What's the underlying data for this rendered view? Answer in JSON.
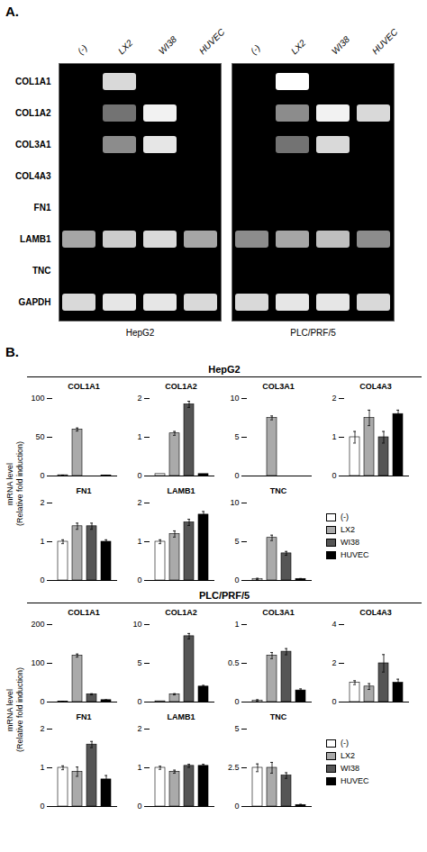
{
  "chart_data": [
    {
      "type": "heatmap",
      "title": "HepG2",
      "annotations": [
        "A."
      ],
      "x": [
        "(-)",
        "LX2",
        "WI38",
        "HUVEC"
      ],
      "y": [
        "COL1A1",
        "COL1A2",
        "COL3A1",
        "COL4A3",
        "FN1",
        "LAMB1",
        "TNC",
        "GAPDH"
      ],
      "cells": [
        [
          0,
          0.85,
          0,
          0
        ],
        [
          0,
          0.45,
          0.95,
          0
        ],
        [
          0,
          0.55,
          0.9,
          0
        ],
        [
          0,
          0,
          0,
          0
        ],
        [
          0,
          0,
          0,
          0
        ],
        [
          0.65,
          0.8,
          0.85,
          0.65
        ],
        [
          0,
          0,
          0,
          0
        ],
        [
          0.85,
          0.9,
          0.9,
          0.85
        ]
      ]
    },
    {
      "type": "heatmap",
      "title": "PLC/PRF/5",
      "x": [
        "(-)",
        "LX2",
        "WI38",
        "HUVEC"
      ],
      "y": [
        "COL1A1",
        "COL1A2",
        "COL3A1",
        "COL4A3",
        "FN1",
        "LAMB1",
        "TNC",
        "GAPDH"
      ],
      "cells": [
        [
          0,
          1.0,
          0,
          0
        ],
        [
          0,
          0.55,
          0.95,
          0.85
        ],
        [
          0,
          0.45,
          0.85,
          0
        ],
        [
          0,
          0,
          0,
          0
        ],
        [
          0,
          0,
          0,
          0
        ],
        [
          0.55,
          0.65,
          0.75,
          0.55
        ],
        [
          0,
          0,
          0,
          0
        ],
        [
          0.85,
          0.9,
          0.9,
          0.85
        ]
      ]
    },
    {
      "type": "bar",
      "title": "COL1A1",
      "subtitle": "HepG2",
      "annotations": [
        "B."
      ],
      "ylabel": "mRNA level\n(Relative fold induction)",
      "categories": [
        "(-)",
        "LX2",
        "WI38",
        "HUVEC"
      ],
      "colors": [
        "white",
        "#aaaaaa",
        "#555555",
        "black"
      ],
      "values": [
        1,
        60,
        0,
        0.5
      ],
      "errors": [
        0.05,
        2,
        0,
        0.1
      ],
      "ylim": [
        0,
        100
      ],
      "yticks": [
        0,
        50,
        100
      ],
      "tick_labels": "y",
      "legend": "right"
    },
    {
      "type": "bar",
      "title": "COL1A2",
      "subtitle": "HepG2",
      "ylabel": "mRNA level\n(Relative fold induction)",
      "categories": [
        "(-)",
        "LX2",
        "WI38",
        "HUVEC"
      ],
      "colors": [
        "white",
        "#aaaaaa",
        "#555555",
        "black"
      ],
      "values": [
        0.05,
        1.1,
        1.85,
        0.05
      ],
      "errors": [
        0,
        0.05,
        0.08,
        0
      ],
      "ylim": [
        0,
        2
      ],
      "yticks": [
        0,
        1,
        2
      ],
      "tick_labels": "y",
      "legend": "right"
    },
    {
      "type": "bar",
      "title": "COL3A1",
      "subtitle": "HepG2",
      "ylabel": "mRNA level\n(Relative fold induction)",
      "categories": [
        "(-)",
        "LX2",
        "WI38",
        "HUVEC"
      ],
      "colors": [
        "white",
        "#aaaaaa",
        "#555555",
        "black"
      ],
      "values": [
        0,
        7.5,
        0,
        0
      ],
      "errors": [
        0,
        0.25,
        0,
        0
      ],
      "ylim": [
        0,
        10
      ],
      "yticks": [
        0,
        5,
        10
      ],
      "tick_labels": "y",
      "legend": "right"
    },
    {
      "type": "bar",
      "title": "COL4A3",
      "subtitle": "HepG2",
      "ylabel": "mRNA level\n(Relative fold induction)",
      "categories": [
        "(-)",
        "LX2",
        "WI38",
        "HUVEC"
      ],
      "colors": [
        "white",
        "#aaaaaa",
        "#555555",
        "black"
      ],
      "values": [
        1.0,
        1.5,
        1.0,
        1.6
      ],
      "errors": [
        0.15,
        0.2,
        0.15,
        0.1
      ],
      "ylim": [
        0,
        2
      ],
      "yticks": [
        0,
        1,
        2
      ],
      "tick_labels": "y",
      "legend": "right"
    },
    {
      "type": "bar",
      "title": "FN1",
      "subtitle": "HepG2",
      "ylabel": "mRNA level\n(Relative fold induction)",
      "categories": [
        "(-)",
        "LX2",
        "WI38",
        "HUVEC"
      ],
      "colors": [
        "white",
        "#aaaaaa",
        "#555555",
        "black"
      ],
      "values": [
        1.0,
        1.4,
        1.4,
        1.0
      ],
      "errors": [
        0.05,
        0.08,
        0.08,
        0.05
      ],
      "ylim": [
        0,
        2
      ],
      "yticks": [
        0,
        1,
        2
      ],
      "tick_labels": "y",
      "legend": "right"
    },
    {
      "type": "bar",
      "title": "LAMB1",
      "subtitle": "HepG2",
      "ylabel": "mRNA level\n(Relative fold induction)",
      "categories": [
        "(-)",
        "LX2",
        "WI38",
        "HUVEC"
      ],
      "colors": [
        "white",
        "#aaaaaa",
        "#555555",
        "black"
      ],
      "values": [
        1.0,
        1.2,
        1.5,
        1.7
      ],
      "errors": [
        0.05,
        0.08,
        0.08,
        0.08
      ],
      "ylim": [
        0,
        2
      ],
      "yticks": [
        0,
        1,
        2
      ],
      "tick_labels": "y",
      "legend": "right"
    },
    {
      "type": "bar",
      "title": "TNC",
      "subtitle": "HepG2",
      "ylabel": "mRNA level\n(Relative fold induction)",
      "categories": [
        "(-)",
        "LX2",
        "WI38",
        "HUVEC"
      ],
      "colors": [
        "white",
        "#aaaaaa",
        "#555555",
        "black"
      ],
      "values": [
        0.2,
        5.5,
        3.5,
        0.2
      ],
      "errors": [
        0.08,
        0.35,
        0.25,
        0.05
      ],
      "ylim": [
        0,
        10
      ],
      "yticks": [
        0,
        5,
        10
      ],
      "tick_labels": "y",
      "legend": "right"
    },
    {
      "type": "bar",
      "title": "COL1A1",
      "subtitle": "PLC/PRF/5",
      "ylabel": "mRNA level\n(Relative fold induction)",
      "categories": [
        "(-)",
        "LX2",
        "WI38",
        "HUVEC"
      ],
      "colors": [
        "white",
        "#aaaaaa",
        "#555555",
        "black"
      ],
      "values": [
        1,
        120,
        20,
        5
      ],
      "errors": [
        0.05,
        4,
        1.5,
        0.8
      ],
      "ylim": [
        0,
        200
      ],
      "yticks": [
        0,
        100,
        200
      ],
      "tick_labels": "y",
      "legend": "right"
    },
    {
      "type": "bar",
      "title": "COL1A2",
      "subtitle": "PLC/PRF/5",
      "ylabel": "mRNA level\n(Relative fold induction)",
      "categories": [
        "(-)",
        "LX2",
        "WI38",
        "HUVEC"
      ],
      "colors": [
        "white",
        "#aaaaaa",
        "#555555",
        "black"
      ],
      "values": [
        0.1,
        1.0,
        8.5,
        2.0
      ],
      "errors": [
        0,
        0.08,
        0.35,
        0.15
      ],
      "ylim": [
        0,
        10
      ],
      "yticks": [
        0,
        5,
        10
      ],
      "tick_labels": "y",
      "legend": "right"
    },
    {
      "type": "bar",
      "title": "COL3A1",
      "subtitle": "PLC/PRF/5",
      "ylabel": "mRNA level\n(Relative fold induction)",
      "categories": [
        "(-)",
        "LX2",
        "WI38",
        "HUVEC"
      ],
      "colors": [
        "white",
        "#aaaaaa",
        "#555555",
        "black"
      ],
      "values": [
        0.02,
        0.6,
        0.65,
        0.15
      ],
      "errors": [
        0.01,
        0.04,
        0.04,
        0.02
      ],
      "ylim": [
        0,
        1
      ],
      "yticks": [
        0,
        0.5,
        1
      ],
      "tick_labels": "y",
      "legend": "right"
    },
    {
      "type": "bar",
      "title": "COL4A3",
      "subtitle": "PLC/PRF/5",
      "ylabel": "mRNA level\n(Relative fold induction)",
      "categories": [
        "(-)",
        "LX2",
        "WI38",
        "HUVEC"
      ],
      "colors": [
        "white",
        "#aaaaaa",
        "#555555",
        "black"
      ],
      "values": [
        1.0,
        0.8,
        2.0,
        1.0
      ],
      "errors": [
        0.1,
        0.15,
        0.45,
        0.18
      ],
      "ylim": [
        0,
        4
      ],
      "yticks": [
        0,
        2,
        4
      ],
      "tick_labels": "y",
      "legend": "right"
    },
    {
      "type": "bar",
      "title": "FN1",
      "subtitle": "PLC/PRF/5",
      "ylabel": "mRNA level\n(Relative fold induction)",
      "categories": [
        "(-)",
        "LX2",
        "WI38",
        "HUVEC"
      ],
      "colors": [
        "white",
        "#aaaaaa",
        "#555555",
        "black"
      ],
      "values": [
        1.0,
        0.9,
        1.6,
        0.7
      ],
      "errors": [
        0.05,
        0.12,
        0.08,
        0.1
      ],
      "ylim": [
        0,
        2
      ],
      "yticks": [
        0,
        1,
        2
      ],
      "tick_labels": "y",
      "legend": "right"
    },
    {
      "type": "bar",
      "title": "LAMB1",
      "subtitle": "PLC/PRF/5",
      "ylabel": "mRNA level\n(Relative fold induction)",
      "categories": [
        "(-)",
        "LX2",
        "WI38",
        "HUVEC"
      ],
      "colors": [
        "white",
        "#aaaaaa",
        "#555555",
        "black"
      ],
      "values": [
        1.0,
        0.9,
        1.05,
        1.05
      ],
      "errors": [
        0.04,
        0.04,
        0.04,
        0.04
      ],
      "ylim": [
        0,
        2
      ],
      "yticks": [
        0,
        1,
        2
      ],
      "tick_labels": "y",
      "legend": "right"
    },
    {
      "type": "bar",
      "title": "TNC",
      "subtitle": "PLC/PRF/5",
      "ylabel": "mRNA level\n(Relative fold induction)",
      "categories": [
        "(-)",
        "LX2",
        "WI38",
        "HUVEC"
      ],
      "colors": [
        "white",
        "#aaaaaa",
        "#555555",
        "black"
      ],
      "values": [
        2.5,
        2.5,
        2.0,
        0.1
      ],
      "errors": [
        0.25,
        0.35,
        0.18,
        0.04
      ],
      "ylim": [
        0,
        5
      ],
      "yticks": [
        0,
        2.5,
        5
      ],
      "tick_labels": "y",
      "legend": "right"
    }
  ]
}
